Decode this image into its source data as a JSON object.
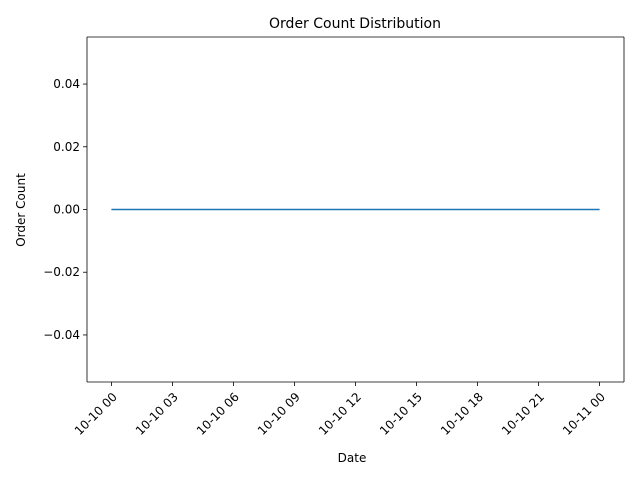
{
  "chart_data": {
    "type": "line",
    "title": "Order Count Distribution",
    "xlabel": "Date",
    "ylabel": "Order Count",
    "x_ticks": [
      "10-10 00",
      "10-10 03",
      "10-10 06",
      "10-10 09",
      "10-10 12",
      "10-10 15",
      "10-10 18",
      "10-10 21",
      "10-11 00"
    ],
    "y_ticks": [
      -0.04,
      -0.02,
      0.0,
      0.02,
      0.04
    ],
    "y_tick_labels": [
      "−0.04",
      "−0.02",
      "0.00",
      "0.02",
      "0.04"
    ],
    "ylim": [
      -0.055,
      0.055
    ],
    "xlim": [
      "10-09 22:48",
      "10-11 01:12"
    ],
    "grid": false,
    "legend": "none",
    "series": [
      {
        "color": "#1f77b4",
        "x": [
          "10-10 00",
          "10-11 00"
        ],
        "values": [
          0,
          0
        ]
      }
    ]
  }
}
